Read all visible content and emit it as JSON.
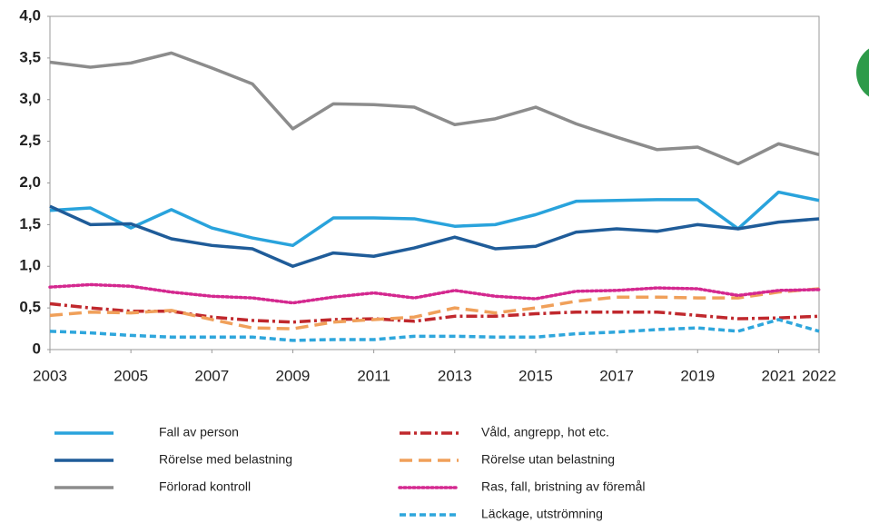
{
  "chart_data": {
    "type": "line",
    "x": [
      2003,
      2004,
      2005,
      2006,
      2007,
      2008,
      2009,
      2010,
      2011,
      2012,
      2013,
      2014,
      2015,
      2016,
      2017,
      2018,
      2019,
      2020,
      2021,
      2022
    ],
    "xlim": [
      2003,
      2022
    ],
    "xticks": [
      2003,
      2005,
      2007,
      2009,
      2011,
      2013,
      2015,
      2017,
      2019,
      2021,
      2022
    ],
    "ylim": [
      0,
      4
    ],
    "yticks": [
      0,
      {
        "value": 0.5,
        "label": "0,5"
      },
      {
        "value": 1,
        "label": "1,0"
      },
      {
        "value": 1.5,
        "label": "1,5"
      },
      {
        "value": 2,
        "label": "2,0"
      },
      {
        "value": 2.5,
        "label": "2,5"
      },
      {
        "value": 3,
        "label": "3,0"
      },
      {
        "value": 3.5,
        "label": "3,5"
      },
      {
        "value": 4,
        "label": "4,0"
      }
    ],
    "grid": false,
    "series": [
      {
        "name": "Fall av person",
        "color": "#29a3dc",
        "style": "solid",
        "values": [
          1.67,
          1.7,
          1.46,
          1.68,
          1.46,
          1.34,
          1.25,
          1.58,
          1.58,
          1.57,
          1.48,
          1.5,
          1.62,
          1.78,
          1.79,
          1.8,
          1.8,
          1.45,
          1.89,
          1.79
        ]
      },
      {
        "name": "Rörelse med belastning",
        "color": "#1f5c99",
        "style": "solid",
        "values": [
          1.72,
          1.5,
          1.51,
          1.33,
          1.25,
          1.21,
          1.0,
          1.16,
          1.12,
          1.22,
          1.35,
          1.21,
          1.24,
          1.41,
          1.45,
          1.42,
          1.5,
          1.45,
          1.53,
          1.57
        ]
      },
      {
        "name": "Förlorad kontroll",
        "color": "#8c8c8c",
        "style": "solid",
        "values": [
          3.45,
          3.39,
          3.44,
          3.56,
          3.38,
          3.19,
          2.65,
          2.95,
          2.94,
          2.91,
          2.7,
          2.77,
          2.91,
          2.71,
          2.55,
          2.4,
          2.43,
          2.23,
          2.47,
          2.34
        ]
      },
      {
        "name": "Våld, angrepp, hot etc.",
        "color": "#c0282d",
        "style": "dashdot",
        "values": [
          0.55,
          0.5,
          0.46,
          0.46,
          0.39,
          0.35,
          0.33,
          0.36,
          0.37,
          0.34,
          0.4,
          0.4,
          0.43,
          0.45,
          0.45,
          0.45,
          0.41,
          0.37,
          0.38,
          0.4
        ]
      },
      {
        "name": "Rörelse utan belastning",
        "color": "#f0a05a",
        "style": "dashed",
        "values": [
          0.41,
          0.45,
          0.44,
          0.47,
          0.36,
          0.26,
          0.25,
          0.33,
          0.36,
          0.39,
          0.5,
          0.44,
          0.5,
          0.58,
          0.63,
          0.63,
          0.62,
          0.62,
          0.69,
          0.73
        ]
      },
      {
        "name": "Ras, fall, bristning av föremål",
        "color": "#d4288f",
        "style": "dotted",
        "values": [
          0.75,
          0.78,
          0.76,
          0.69,
          0.64,
          0.62,
          0.56,
          0.63,
          0.68,
          0.62,
          0.71,
          0.64,
          0.61,
          0.7,
          0.71,
          0.74,
          0.73,
          0.65,
          0.71,
          0.72
        ]
      },
      {
        "name": "Läckage, utströmning",
        "color": "#2ea6dc",
        "style": "shortdash",
        "values": [
          0.22,
          0.2,
          0.17,
          0.15,
          0.15,
          0.15,
          0.11,
          0.12,
          0.12,
          0.16,
          0.16,
          0.15,
          0.15,
          0.19,
          0.21,
          0.24,
          0.26,
          0.22,
          0.36,
          0.22
        ]
      }
    ]
  }
}
